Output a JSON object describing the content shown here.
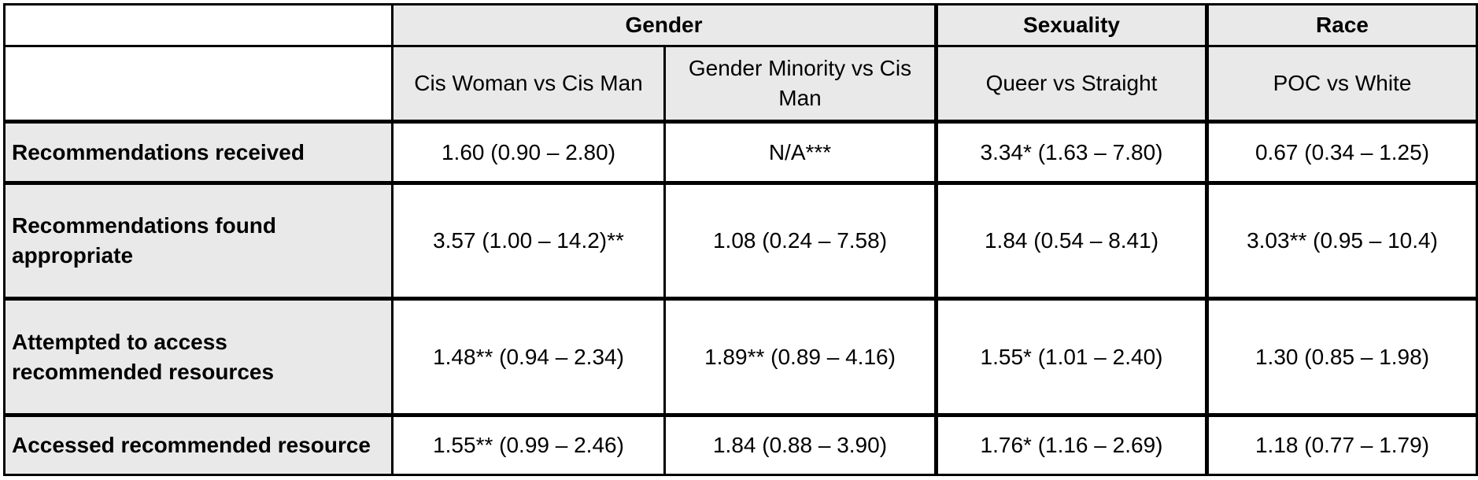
{
  "table": {
    "groups": [
      {
        "label": "Gender",
        "span": 2
      },
      {
        "label": "Sexuality",
        "span": 1
      },
      {
        "label": "Race",
        "span": 1
      }
    ],
    "subheaders": [
      "Cis Woman vs Cis Man",
      "Gender Minority vs Cis Man",
      "Queer vs Straight",
      "POC vs White"
    ],
    "rows": [
      {
        "label": "Recommendations received",
        "values": [
          "1.60 (0.90 – 2.80)",
          "N/A***",
          "3.34* (1.63 – 7.80)",
          "0.67 (0.34 – 1.25)"
        ]
      },
      {
        "label": "Recommendations found appropriate",
        "values": [
          "3.57 (1.00 –  14.2)**",
          "1.08 (0.24 –  7.58)",
          "1.84 (0.54 –  8.41)",
          "3.03** (0.95 – 10.4)"
        ]
      },
      {
        "label": "Attempted to access recommended resources",
        "values": [
          "1.48** (0.94 –  2.34)",
          "1.89** (0.89 –  4.16)",
          "1.55* (1.01 –  2.40)",
          "1.30 (0.85 – 1.98)"
        ]
      },
      {
        "label": "Accessed recommended resource",
        "values": [
          "1.55** (0.99 –  2.46)",
          "1.84 (0.88 –  3.90)",
          "1.76* (1.16 –  2.69)",
          "1.18 (0.77 – 1.79)"
        ]
      }
    ]
  }
}
